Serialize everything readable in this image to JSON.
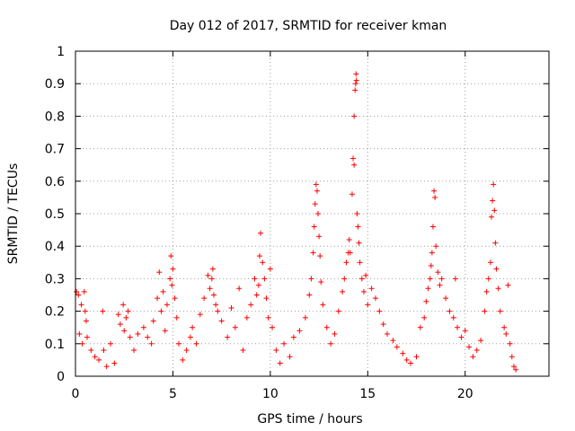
{
  "chart_data": {
    "type": "scatter",
    "title": "Day 012 of 2017, SRMTID for receiver kman",
    "xlabel": "GPS time / hours",
    "ylabel": "SRMTID / TECUs",
    "xlim": [
      0,
      24.3
    ],
    "ylim": [
      0,
      1
    ],
    "x_ticks": [
      0,
      5,
      10,
      15,
      20
    ],
    "x_tick_labels": [
      "0",
      "5",
      "10",
      "15",
      "20"
    ],
    "y_ticks": [
      0,
      0.1,
      0.2,
      0.3,
      0.4,
      0.5,
      0.6,
      0.7,
      0.8,
      0.9,
      1
    ],
    "y_tick_labels": [
      "0",
      "0.1",
      "0.2",
      "0.3",
      "0.4",
      "0.5",
      "0.6",
      "0.7",
      "0.8",
      "0.9",
      "1"
    ],
    "grid": true,
    "marker": "+",
    "color": "#ff0000",
    "series": [
      {
        "name": "SRMTID",
        "points": [
          [
            0.05,
            0.26
          ],
          [
            0.15,
            0.25
          ],
          [
            0.3,
            0.22
          ],
          [
            0.45,
            0.26
          ],
          [
            0.5,
            0.2
          ],
          [
            0.55,
            0.17
          ],
          [
            0.2,
            0.13
          ],
          [
            0.35,
            0.1
          ],
          [
            0.6,
            0.12
          ],
          [
            0.8,
            0.08
          ],
          [
            1.0,
            0.06
          ],
          [
            1.2,
            0.05
          ],
          [
            1.4,
            0.2
          ],
          [
            1.45,
            0.08
          ],
          [
            1.6,
            0.03
          ],
          [
            1.8,
            0.1
          ],
          [
            2.0,
            0.04
          ],
          [
            2.2,
            0.19
          ],
          [
            2.3,
            0.16
          ],
          [
            2.45,
            0.22
          ],
          [
            2.5,
            0.14
          ],
          [
            2.6,
            0.18
          ],
          [
            2.7,
            0.2
          ],
          [
            2.8,
            0.12
          ],
          [
            3.0,
            0.08
          ],
          [
            3.2,
            0.13
          ],
          [
            3.5,
            0.15
          ],
          [
            3.7,
            0.12
          ],
          [
            3.9,
            0.1
          ],
          [
            4.0,
            0.17
          ],
          [
            4.2,
            0.24
          ],
          [
            4.3,
            0.32
          ],
          [
            4.4,
            0.2
          ],
          [
            4.5,
            0.26
          ],
          [
            4.6,
            0.14
          ],
          [
            4.7,
            0.22
          ],
          [
            4.85,
            0.3
          ],
          [
            4.9,
            0.37
          ],
          [
            5.0,
            0.33
          ],
          [
            4.95,
            0.28
          ],
          [
            5.1,
            0.24
          ],
          [
            5.2,
            0.18
          ],
          [
            5.3,
            0.1
          ],
          [
            5.5,
            0.05
          ],
          [
            5.7,
            0.08
          ],
          [
            5.9,
            0.12
          ],
          [
            6.0,
            0.15
          ],
          [
            6.2,
            0.1
          ],
          [
            6.4,
            0.19
          ],
          [
            6.6,
            0.24
          ],
          [
            6.8,
            0.31
          ],
          [
            6.9,
            0.27
          ],
          [
            7.0,
            0.3
          ],
          [
            7.05,
            0.33
          ],
          [
            7.1,
            0.25
          ],
          [
            7.2,
            0.22
          ],
          [
            7.3,
            0.2
          ],
          [
            7.5,
            0.17
          ],
          [
            7.8,
            0.12
          ],
          [
            8.0,
            0.21
          ],
          [
            8.2,
            0.15
          ],
          [
            8.4,
            0.27
          ],
          [
            8.6,
            0.08
          ],
          [
            8.8,
            0.18
          ],
          [
            9.0,
            0.22
          ],
          [
            9.2,
            0.3
          ],
          [
            9.3,
            0.25
          ],
          [
            9.4,
            0.28
          ],
          [
            9.45,
            0.37
          ],
          [
            9.5,
            0.44
          ],
          [
            9.6,
            0.35
          ],
          [
            9.7,
            0.3
          ],
          [
            9.8,
            0.24
          ],
          [
            9.9,
            0.18
          ],
          [
            10.0,
            0.33
          ],
          [
            10.1,
            0.15
          ],
          [
            10.3,
            0.08
          ],
          [
            10.5,
            0.04
          ],
          [
            10.7,
            0.1
          ],
          [
            11.0,
            0.06
          ],
          [
            11.2,
            0.12
          ],
          [
            11.5,
            0.14
          ],
          [
            11.8,
            0.18
          ],
          [
            12.0,
            0.25
          ],
          [
            12.1,
            0.3
          ],
          [
            12.2,
            0.38
          ],
          [
            12.25,
            0.46
          ],
          [
            12.3,
            0.53
          ],
          [
            12.35,
            0.59
          ],
          [
            12.4,
            0.57
          ],
          [
            12.45,
            0.5
          ],
          [
            12.5,
            0.43
          ],
          [
            12.55,
            0.37
          ],
          [
            12.6,
            0.29
          ],
          [
            12.7,
            0.22
          ],
          [
            12.9,
            0.15
          ],
          [
            13.1,
            0.1
          ],
          [
            13.3,
            0.13
          ],
          [
            13.5,
            0.2
          ],
          [
            13.7,
            0.26
          ],
          [
            13.8,
            0.3
          ],
          [
            13.9,
            0.35
          ],
          [
            14.0,
            0.38
          ],
          [
            14.05,
            0.42
          ],
          [
            14.1,
            0.38
          ],
          [
            14.2,
            0.56
          ],
          [
            14.25,
            0.67
          ],
          [
            14.3,
            0.65
          ],
          [
            14.3,
            0.8
          ],
          [
            14.35,
            0.88
          ],
          [
            14.38,
            0.9
          ],
          [
            14.4,
            0.93
          ],
          [
            14.42,
            0.91
          ],
          [
            14.45,
            0.5
          ],
          [
            14.5,
            0.46
          ],
          [
            14.55,
            0.41
          ],
          [
            14.6,
            0.35
          ],
          [
            14.7,
            0.3
          ],
          [
            14.8,
            0.26
          ],
          [
            14.9,
            0.31
          ],
          [
            15.0,
            0.22
          ],
          [
            15.2,
            0.27
          ],
          [
            15.4,
            0.24
          ],
          [
            15.6,
            0.2
          ],
          [
            15.8,
            0.16
          ],
          [
            16.0,
            0.13
          ],
          [
            16.3,
            0.11
          ],
          [
            16.5,
            0.09
          ],
          [
            16.8,
            0.07
          ],
          [
            17.0,
            0.05
          ],
          [
            17.2,
            0.04
          ],
          [
            17.5,
            0.06
          ],
          [
            17.7,
            0.15
          ],
          [
            17.9,
            0.18
          ],
          [
            18.0,
            0.23
          ],
          [
            18.1,
            0.27
          ],
          [
            18.2,
            0.3
          ],
          [
            18.25,
            0.34
          ],
          [
            18.3,
            0.38
          ],
          [
            18.35,
            0.46
          ],
          [
            18.4,
            0.57
          ],
          [
            18.45,
            0.55
          ],
          [
            18.5,
            0.4
          ],
          [
            18.6,
            0.32
          ],
          [
            18.7,
            0.28
          ],
          [
            18.8,
            0.3
          ],
          [
            19.0,
            0.24
          ],
          [
            19.2,
            0.2
          ],
          [
            19.4,
            0.18
          ],
          [
            19.5,
            0.3
          ],
          [
            19.6,
            0.15
          ],
          [
            19.8,
            0.12
          ],
          [
            20.0,
            0.14
          ],
          [
            20.2,
            0.09
          ],
          [
            20.4,
            0.06
          ],
          [
            20.6,
            0.08
          ],
          [
            20.8,
            0.11
          ],
          [
            21.0,
            0.2
          ],
          [
            21.1,
            0.26
          ],
          [
            21.2,
            0.3
          ],
          [
            21.3,
            0.35
          ],
          [
            21.35,
            0.49
          ],
          [
            21.4,
            0.54
          ],
          [
            21.45,
            0.59
          ],
          [
            21.5,
            0.51
          ],
          [
            21.55,
            0.41
          ],
          [
            21.6,
            0.33
          ],
          [
            21.7,
            0.27
          ],
          [
            21.8,
            0.2
          ],
          [
            22.0,
            0.15
          ],
          [
            22.1,
            0.13
          ],
          [
            22.2,
            0.28
          ],
          [
            22.3,
            0.1
          ],
          [
            22.4,
            0.06
          ],
          [
            22.5,
            0.03
          ],
          [
            22.6,
            0.02
          ]
        ]
      }
    ]
  }
}
